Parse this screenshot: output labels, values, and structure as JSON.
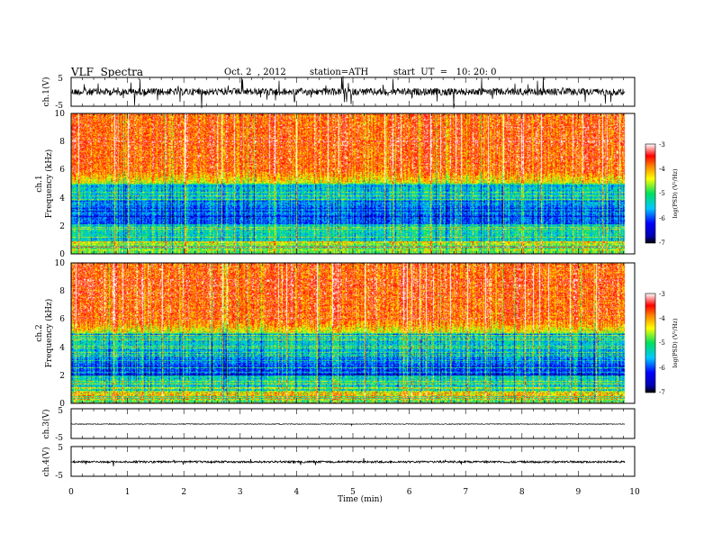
{
  "header": {
    "title": "VLF  Spectra",
    "date": "Oct. 2  , 2012",
    "station": "station=ATH",
    "start": "start  UT  =   10: 20: 0"
  },
  "chart_data": [
    {
      "type": "line",
      "panel": "ch1-waveform",
      "ylabel": "ch.1(V)",
      "yticks": [
        "5",
        "-5"
      ],
      "ylim": [
        -5,
        5
      ],
      "description": "dense high-amplitude noisy waveform around zero"
    },
    {
      "type": "heatmap",
      "panel": "ch1-spectrogram",
      "ylabel": [
        "ch.1",
        "Frequency  (kHz)"
      ],
      "yticks": [
        "0",
        "2",
        "4",
        "6",
        "8",
        "10"
      ],
      "ylim": [
        0,
        10
      ],
      "colorbar": {
        "label": "log(PSD) (V²/Hz)",
        "ticks": [
          "-3",
          "-4",
          "-5",
          "-6",
          "-7"
        ],
        "range": [
          -7,
          -3
        ]
      }
    },
    {
      "type": "heatmap",
      "panel": "ch2-spectrogram",
      "ylabel": [
        "ch.2",
        "Frequency  (kHz)"
      ],
      "yticks": [
        "0",
        "2",
        "4",
        "6",
        "8",
        "10"
      ],
      "ylim": [
        0,
        10
      ],
      "colorbar": {
        "label": "log(PSD) (V²/Hz)",
        "ticks": [
          "-3",
          "-4",
          "-5",
          "-6",
          "-7"
        ],
        "range": [
          -7,
          -3
        ]
      }
    },
    {
      "type": "line",
      "panel": "ch3-waveform",
      "ylabel": "ch.3(V)",
      "yticks": [
        "5",
        "-5"
      ],
      "ylim": [
        -5,
        5
      ],
      "description": "nearly flat trace near the center"
    },
    {
      "type": "line",
      "panel": "ch4-waveform",
      "ylabel": "ch.4(V)",
      "yticks": [
        "5",
        "-5"
      ],
      "ylim": [
        -5,
        5
      ],
      "description": "slightly noisy trace near the center"
    }
  ],
  "xaxis": {
    "label": "Time  (min)",
    "ticks": [
      "0",
      "1",
      "2",
      "3",
      "4",
      "5",
      "6",
      "7",
      "8",
      "9",
      "10"
    ],
    "xlim": [
      0,
      10
    ],
    "data_end": 9.83
  }
}
